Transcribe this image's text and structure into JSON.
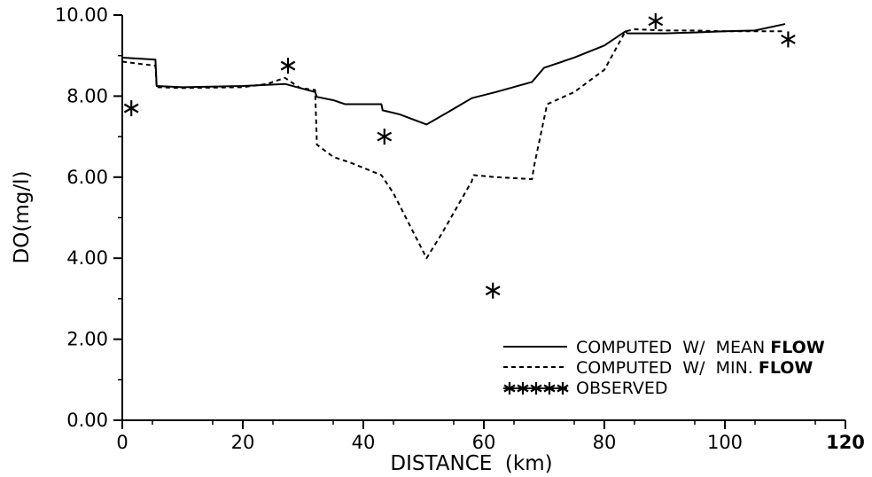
{
  "chart_data": {
    "type": "line",
    "xlabel": "DISTANCE  (km)",
    "ylabel": "DO(mg/l)",
    "xlim": [
      0,
      120
    ],
    "ylim": [
      0,
      10
    ],
    "x_ticks": [
      "0",
      "20",
      "40",
      "60",
      "80",
      "100",
      "120"
    ],
    "y_ticks": [
      "0.00",
      "2.00",
      "4.00",
      "6.00",
      "8.00",
      "10.00"
    ],
    "grid": false,
    "legend_position": "bottom-right",
    "legend": {
      "mean": {
        "prefix": "COMPUTED  W/  MEAN ",
        "bold": "FLOW"
      },
      "min": {
        "prefix": "COMPUTED  W/  MIN. ",
        "bold": "FLOW"
      },
      "observed": "OBSERVED"
    },
    "series": [
      {
        "key": "mean",
        "style": "solid",
        "x": [
          0,
          5.5,
          5.7,
          10,
          20,
          27,
          32,
          32.3,
          35,
          37,
          43,
          43.2,
          46,
          50.5,
          54,
          58,
          62,
          68,
          70,
          75,
          80,
          83.5,
          83.8,
          90,
          95,
          100,
          105,
          110
        ],
        "y": [
          8.95,
          8.9,
          8.25,
          8.22,
          8.25,
          8.3,
          8.1,
          7.98,
          7.9,
          7.8,
          7.8,
          7.65,
          7.55,
          7.3,
          7.6,
          7.95,
          8.1,
          8.35,
          8.7,
          8.95,
          9.25,
          9.6,
          9.55,
          9.55,
          9.57,
          9.6,
          9.62,
          9.78
        ]
      },
      {
        "key": "min",
        "style": "dashed",
        "x": [
          0,
          5.5,
          5.7,
          10,
          20,
          24,
          27,
          29.5,
          32,
          32.3,
          35,
          38,
          43,
          45,
          50.5,
          53,
          58,
          58.3,
          62,
          68,
          68.3,
          70.5,
          75,
          80,
          83.5,
          85,
          90,
          95,
          100,
          105,
          110
        ],
        "y": [
          8.85,
          8.75,
          8.22,
          8.2,
          8.22,
          8.3,
          8.45,
          8.2,
          8.15,
          6.8,
          6.5,
          6.35,
          6.05,
          5.6,
          4.0,
          4.6,
          5.9,
          6.05,
          6.0,
          5.95,
          6.25,
          7.8,
          8.1,
          8.65,
          9.6,
          9.65,
          9.62,
          9.62,
          9.6,
          9.6,
          9.6
        ]
      },
      {
        "key": "observed",
        "style": "markers",
        "marker": "*",
        "x": [
          1.5,
          27.5,
          43.5,
          61.5,
          88.5,
          110.5
        ],
        "y": [
          7.7,
          8.75,
          7.0,
          3.2,
          9.85,
          9.4
        ]
      }
    ]
  }
}
